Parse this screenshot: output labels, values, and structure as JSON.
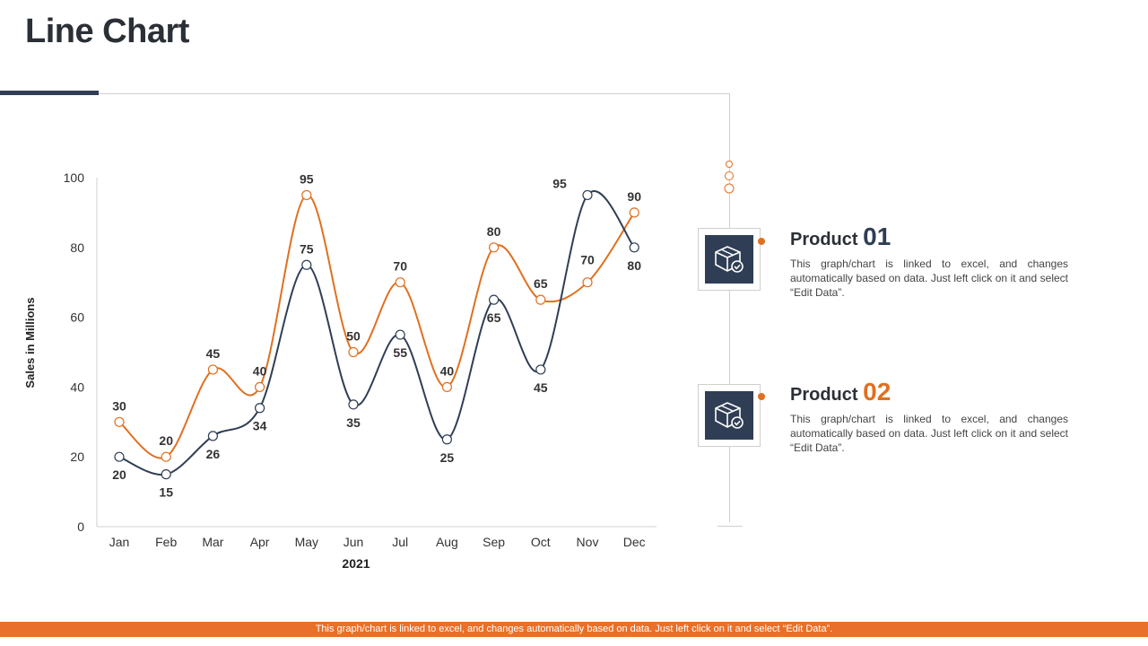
{
  "page": {
    "title": "Line Chart",
    "footer_text": "This graph/chart is linked to excel, and changes automatically based on data. Just left click on it and select “Edit Data”."
  },
  "legend": [
    {
      "prefix": "Product",
      "number": "01",
      "number_color": "#2f3e55",
      "description": "This graph/chart is linked to excel, and changes automatically based on data. Just left click on it and select “Edit Data”.",
      "icon": "box-check-icon"
    },
    {
      "prefix": "Product",
      "number": "02",
      "number_color": "#e07020",
      "description": "This graph/chart is linked to excel, and changes automatically based on data. Just left click on it and select “Edit Data”.",
      "icon": "box-check-icon"
    }
  ],
  "chart_data": {
    "type": "line",
    "title": "",
    "xlabel": "2021",
    "ylabel": "Sales in Millions",
    "categories": [
      "Jan",
      "Feb",
      "Mar",
      "Apr",
      "May",
      "Jun",
      "Jul",
      "Aug",
      "Sep",
      "Oct",
      "Nov",
      "Dec"
    ],
    "ylim": [
      0,
      100
    ],
    "yticks": [
      0,
      20,
      40,
      60,
      80,
      100
    ],
    "grid": false,
    "smooth": true,
    "series": [
      {
        "color": "#e07020",
        "values": [
          30,
          20,
          45,
          40,
          95,
          50,
          70,
          40,
          80,
          65,
          70,
          90
        ]
      },
      {
        "color": "#2f3e55",
        "values": [
          20,
          15,
          26,
          34,
          75,
          35,
          55,
          25,
          65,
          45,
          95,
          80
        ]
      }
    ]
  }
}
